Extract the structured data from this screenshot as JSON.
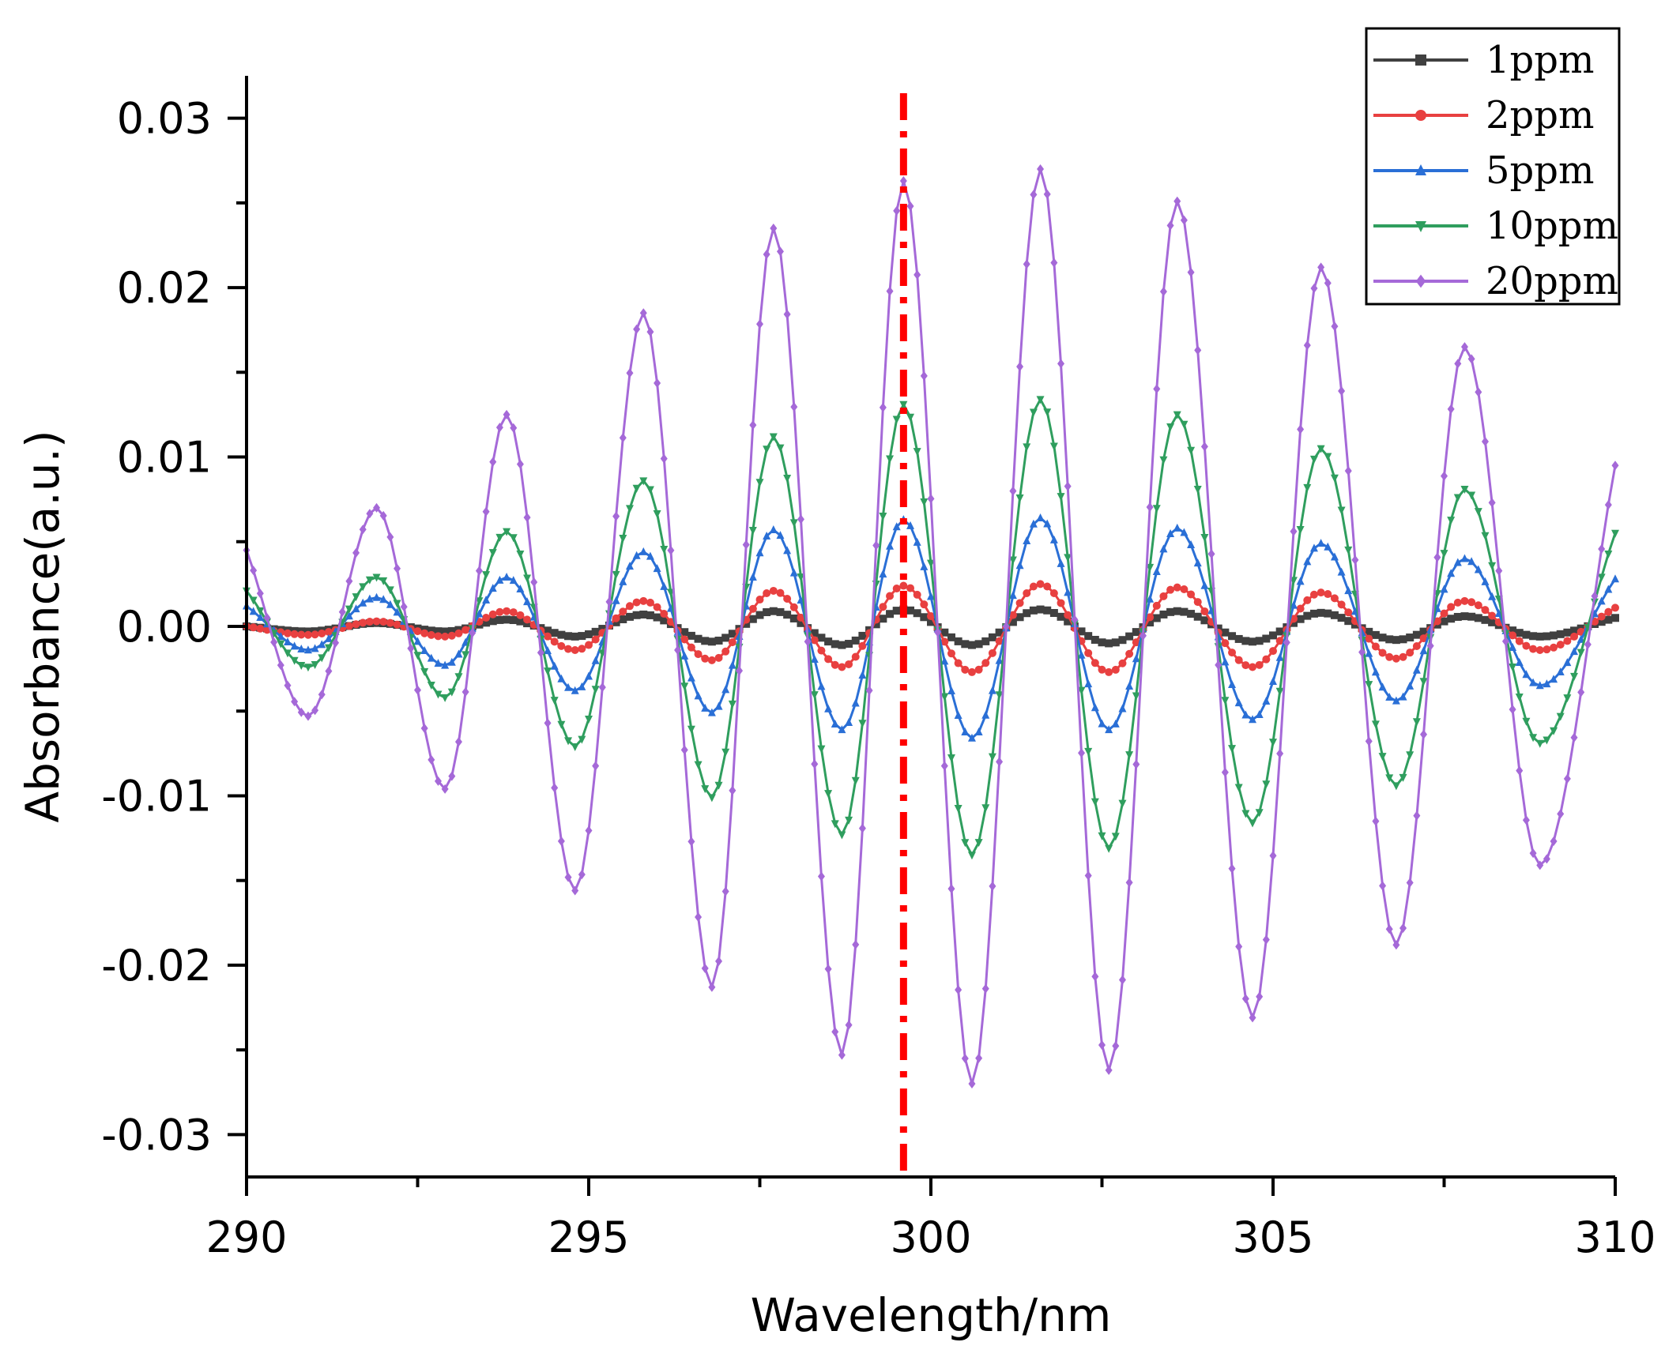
{
  "chart_data": {
    "type": "line",
    "xlabel": "Wavelength/nm",
    "ylabel": "Absorbance(a.u.)",
    "xlim": [
      290,
      310
    ],
    "ylim": [
      -0.0325,
      0.0325
    ],
    "xticks": [
      290,
      295,
      300,
      305,
      310
    ],
    "xtick_labels": [
      "290",
      "295",
      "300",
      "305",
      "310"
    ],
    "yticks": [
      0.03,
      0.02,
      0.01,
      0.0,
      -0.01,
      -0.02,
      -0.03
    ],
    "ytick_labels": [
      "0.03",
      "0.02",
      "0.01",
      "0.00",
      "-0.01",
      "-0.02",
      "-0.03"
    ],
    "reference_line": {
      "x": 299.6,
      "style": "dash-dot",
      "color": "#ff0000"
    },
    "legend_position": "top-right",
    "series": [
      {
        "name": "1ppm",
        "color": "#404040",
        "marker": "square",
        "points": [
          [
            290,
            0.0
          ],
          [
            290.9,
            -0.0003
          ],
          [
            291.9,
            0.0002
          ],
          [
            292.9,
            -0.0003
          ],
          [
            293.8,
            0.0004
          ],
          [
            294.8,
            -0.0006
          ],
          [
            295.8,
            0.0007
          ],
          [
            296.8,
            -0.0009
          ],
          [
            297.7,
            0.0009
          ],
          [
            298.7,
            -0.0011
          ],
          [
            299.6,
            0.001
          ],
          [
            300.6,
            -0.0011
          ],
          [
            301.6,
            0.001
          ],
          [
            302.6,
            -0.001
          ],
          [
            303.6,
            0.0009
          ],
          [
            304.7,
            -0.0009
          ],
          [
            305.7,
            0.0008
          ],
          [
            306.8,
            -0.0008
          ],
          [
            307.8,
            0.0006
          ],
          [
            308.9,
            -0.0006
          ],
          [
            310,
            0.0005
          ]
        ]
      },
      {
        "name": "2ppm",
        "color": "#e84040",
        "marker": "circle",
        "points": [
          [
            290,
            0.0
          ],
          [
            290.9,
            -0.0005
          ],
          [
            291.9,
            0.0003
          ],
          [
            292.9,
            -0.0006
          ],
          [
            293.8,
            0.0009
          ],
          [
            294.8,
            -0.0014
          ],
          [
            295.8,
            0.0015
          ],
          [
            296.8,
            -0.002
          ],
          [
            297.7,
            0.0021
          ],
          [
            298.7,
            -0.0024
          ],
          [
            299.6,
            0.0024
          ],
          [
            300.6,
            -0.0027
          ],
          [
            301.6,
            0.0025
          ],
          [
            302.6,
            -0.0027
          ],
          [
            303.6,
            0.0023
          ],
          [
            304.7,
            -0.0024
          ],
          [
            305.7,
            0.002
          ],
          [
            306.8,
            -0.0019
          ],
          [
            307.8,
            0.0015
          ],
          [
            308.9,
            -0.0014
          ],
          [
            310,
            0.0011
          ]
        ]
      },
      {
        "name": "5ppm",
        "color": "#2a6fd6",
        "marker": "triangle-up",
        "points": [
          [
            290,
            0.0012
          ],
          [
            290.9,
            -0.0014
          ],
          [
            291.9,
            0.0017
          ],
          [
            292.9,
            -0.0023
          ],
          [
            293.8,
            0.0029
          ],
          [
            294.8,
            -0.0038
          ],
          [
            295.8,
            0.0044
          ],
          [
            296.8,
            -0.0051
          ],
          [
            297.7,
            0.0057
          ],
          [
            298.7,
            -0.0061
          ],
          [
            299.6,
            0.0063
          ],
          [
            300.6,
            -0.0066
          ],
          [
            301.6,
            0.0064
          ],
          [
            302.6,
            -0.0061
          ],
          [
            303.6,
            0.0058
          ],
          [
            304.7,
            -0.0055
          ],
          [
            305.7,
            0.0049
          ],
          [
            306.8,
            -0.0044
          ],
          [
            307.8,
            0.004
          ],
          [
            308.9,
            -0.0035
          ],
          [
            310,
            0.0028
          ]
        ]
      },
      {
        "name": "10ppm",
        "color": "#2f9e5e",
        "marker": "triangle-down",
        "points": [
          [
            290,
            0.0021
          ],
          [
            290.9,
            -0.0024
          ],
          [
            291.9,
            0.0029
          ],
          [
            292.9,
            -0.0042
          ],
          [
            293.8,
            0.0056
          ],
          [
            294.8,
            -0.0071
          ],
          [
            295.8,
            0.0086
          ],
          [
            296.8,
            -0.0101
          ],
          [
            297.7,
            0.0112
          ],
          [
            298.7,
            -0.0123
          ],
          [
            299.6,
            0.0131
          ],
          [
            300.6,
            -0.0135
          ],
          [
            301.6,
            0.0134
          ],
          [
            302.6,
            -0.0131
          ],
          [
            303.6,
            0.0125
          ],
          [
            304.7,
            -0.0116
          ],
          [
            305.7,
            0.0105
          ],
          [
            306.8,
            -0.0094
          ],
          [
            307.8,
            0.0081
          ],
          [
            308.9,
            -0.0069
          ],
          [
            310,
            0.0055
          ]
        ]
      },
      {
        "name": "20ppm",
        "color": "#a569d8",
        "marker": "diamond",
        "points": [
          [
            290,
            0.0045
          ],
          [
            290.9,
            -0.0053
          ],
          [
            291.9,
            0.007
          ],
          [
            292.9,
            -0.0096
          ],
          [
            293.8,
            0.0125
          ],
          [
            294.8,
            -0.0156
          ],
          [
            295.8,
            0.0185
          ],
          [
            296.8,
            -0.0213
          ],
          [
            297.7,
            0.0235
          ],
          [
            298.7,
            -0.0253
          ],
          [
            299.6,
            0.0263
          ],
          [
            300.6,
            -0.027
          ],
          [
            301.6,
            0.027
          ],
          [
            302.6,
            -0.0262
          ],
          [
            303.6,
            0.0251
          ],
          [
            304.7,
            -0.0231
          ],
          [
            305.7,
            0.0212
          ],
          [
            306.8,
            -0.0188
          ],
          [
            307.8,
            0.0165
          ],
          [
            308.9,
            -0.0141
          ],
          [
            310,
            0.0095
          ]
        ]
      }
    ]
  }
}
